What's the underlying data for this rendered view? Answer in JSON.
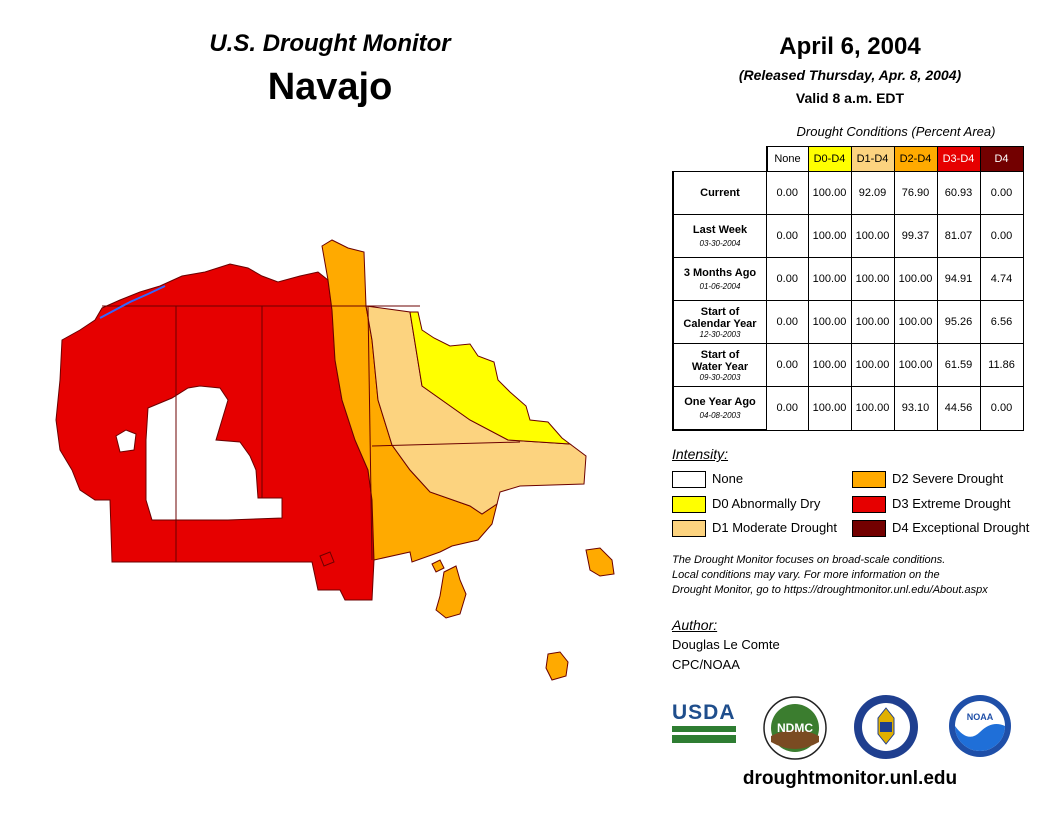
{
  "header": {
    "title": "U.S. Drought Monitor",
    "region": "Navajo",
    "date": "April 6, 2004",
    "released": "(Released Thursday, Apr. 8, 2004)",
    "valid": "Valid 8 a.m. EDT"
  },
  "table": {
    "title": "Drought Conditions (Percent Area)",
    "columns": [
      "None",
      "D0-D4",
      "D1-D4",
      "D2-D4",
      "D3-D4",
      "D4"
    ],
    "rows": [
      {
        "label": "Current",
        "date": "",
        "values": [
          "0.00",
          "100.00",
          "92.09",
          "76.90",
          "60.93",
          "0.00"
        ]
      },
      {
        "label": "Last Week",
        "date": "03-30-2004",
        "values": [
          "0.00",
          "100.00",
          "100.00",
          "99.37",
          "81.07",
          "0.00"
        ]
      },
      {
        "label": "3 Months Ago",
        "date": "01-06-2004",
        "values": [
          "0.00",
          "100.00",
          "100.00",
          "100.00",
          "94.91",
          "4.74"
        ]
      },
      {
        "label_line1": "Start of",
        "label_line2": "Calendar Year",
        "date": "12-30-2003",
        "values": [
          "0.00",
          "100.00",
          "100.00",
          "100.00",
          "95.26",
          "6.56"
        ]
      },
      {
        "label_line1": "Start of",
        "label_line2": "Water Year",
        "date": "09-30-2003",
        "values": [
          "0.00",
          "100.00",
          "100.00",
          "100.00",
          "61.59",
          "11.86"
        ]
      },
      {
        "label": "One Year Ago",
        "date": "04-08-2003",
        "values": [
          "0.00",
          "100.00",
          "100.00",
          "93.10",
          "44.56",
          "0.00"
        ]
      }
    ]
  },
  "legend": {
    "title": "Intensity:",
    "items": [
      {
        "label": "None",
        "color": "#ffffff"
      },
      {
        "label": "D0 Abnormally Dry",
        "color": "#ffff00"
      },
      {
        "label": "D1 Moderate Drought",
        "color": "#fcd37f"
      },
      {
        "label": "D2 Severe Drought",
        "color": "#ffaa00"
      },
      {
        "label": "D3 Extreme Drought",
        "color": "#e60000"
      },
      {
        "label": "D4 Exceptional Drought",
        "color": "#730000"
      }
    ]
  },
  "note": {
    "line1": "The Drought Monitor focuses on broad-scale conditions.",
    "line2": "Local conditions may vary. For more information on the",
    "line3": "Drought Monitor, go to https://droughtmonitor.unl.edu/About.aspx"
  },
  "author": {
    "title": "Author:",
    "name": "Douglas Le Comte",
    "org": "CPC/NOAA"
  },
  "logos": {
    "usda": "USDA",
    "ndmc": "NDMC",
    "noaa": "NOAA"
  },
  "website": "droughtmonitor.unl.edu"
}
